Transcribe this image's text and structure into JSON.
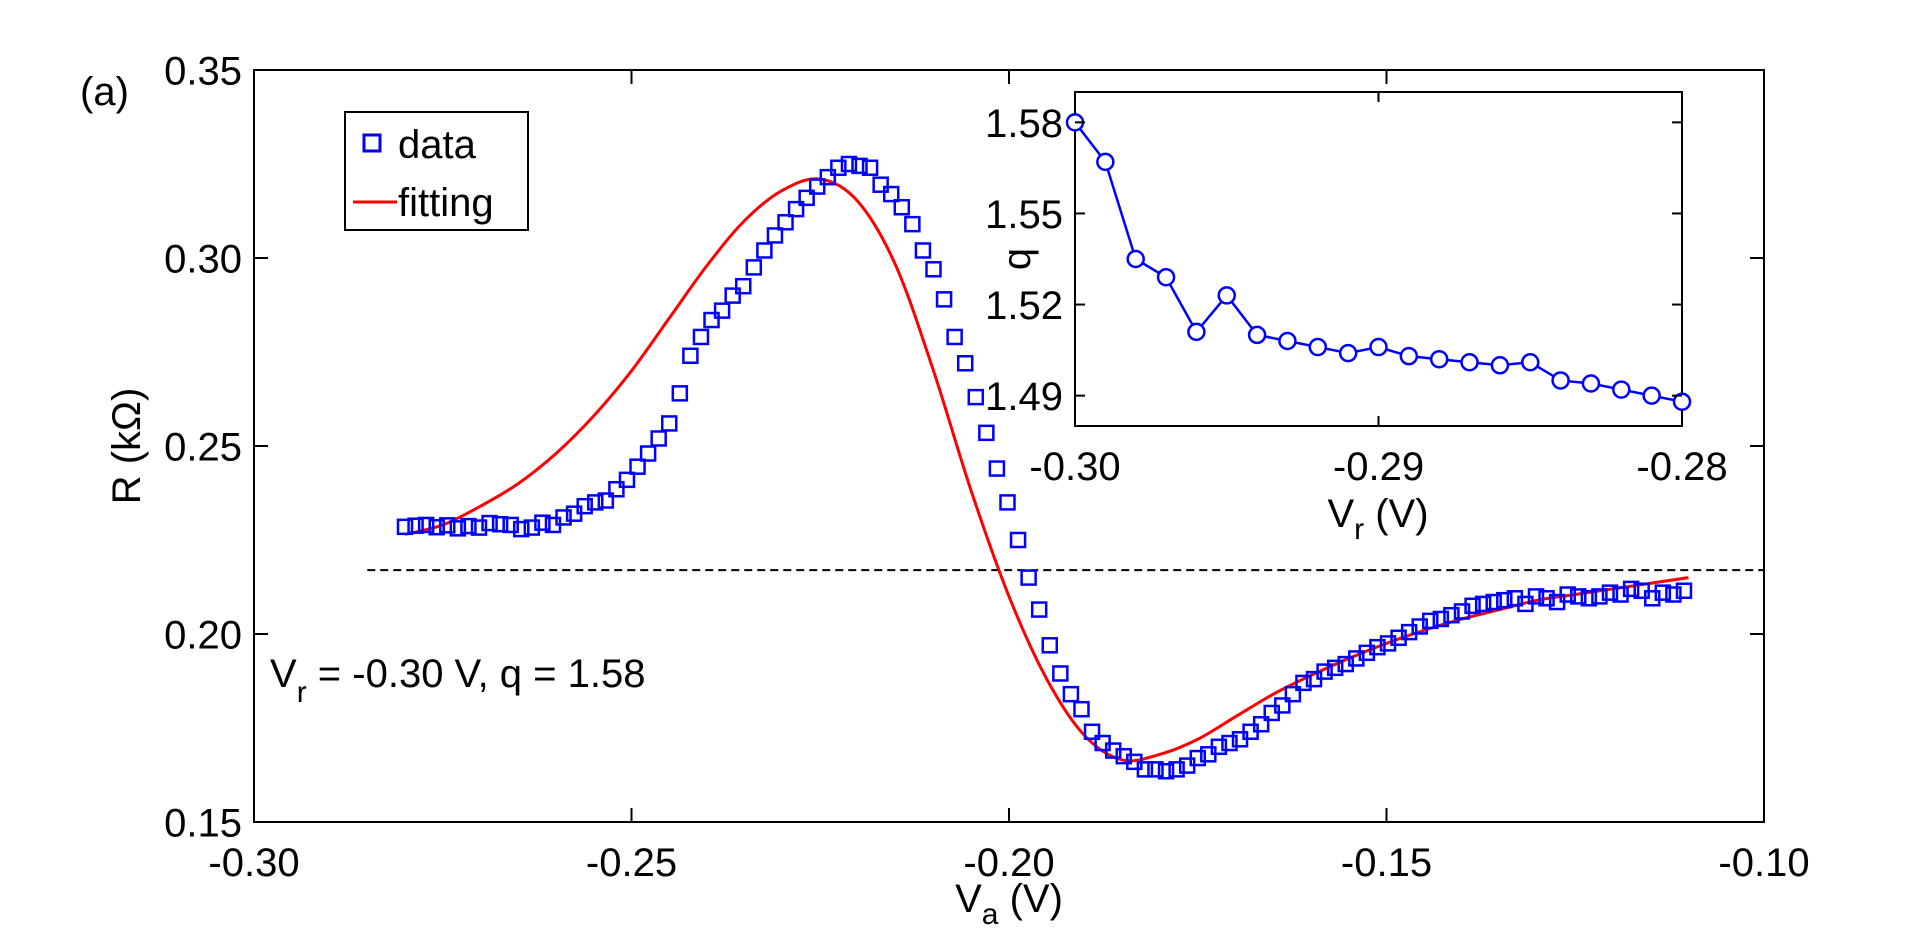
{
  "chart_data": [
    {
      "type": "scatter",
      "panel_label": "(a)",
      "xlabel": {
        "main": "V",
        "sub": "a",
        "unit": " (V)"
      },
      "ylabel": "R (kΩ)",
      "xlim": [
        -0.3,
        -0.1
      ],
      "ylim": [
        0.15,
        0.35
      ],
      "xticks": [
        -0.3,
        -0.25,
        -0.2,
        -0.15,
        -0.1
      ],
      "xtick_labels": [
        "-0.30",
        "-0.25",
        "-0.20",
        "-0.15",
        "-0.10"
      ],
      "yticks": [
        0.15,
        0.2,
        0.25,
        0.3,
        0.35
      ],
      "ytick_labels": [
        "0.15",
        "0.20",
        "0.25",
        "0.30",
        "0.35"
      ],
      "legend": {
        "position": "top-left",
        "entries": [
          "data",
          "fitting"
        ]
      },
      "annotation": {
        "v": "V",
        "sub": "r",
        "rest": " = -0.30 V, q = 1.58"
      },
      "reference_line": {
        "y": 0.217,
        "x_start": -0.285,
        "x_end": -0.1,
        "style": "dashed"
      },
      "series": [
        {
          "name": "data",
          "marker": "square",
          "color": "#0000ff",
          "x": [
            -0.28,
            -0.2786,
            -0.2772,
            -0.2758,
            -0.2744,
            -0.273,
            -0.2716,
            -0.2702,
            -0.2688,
            -0.2674,
            -0.266,
            -0.2646,
            -0.2632,
            -0.2618,
            -0.2604,
            -0.259,
            -0.2576,
            -0.2562,
            -0.2548,
            -0.2534,
            -0.252,
            -0.2506,
            -0.2492,
            -0.2478,
            -0.2464,
            -0.245,
            -0.2436,
            -0.2422,
            -0.2408,
            -0.2394,
            -0.238,
            -0.2366,
            -0.2352,
            -0.2338,
            -0.2324,
            -0.231,
            -0.2296,
            -0.2282,
            -0.2268,
            -0.2254,
            -0.224,
            -0.2226,
            -0.2212,
            -0.2198,
            -0.2184,
            -0.217,
            -0.2156,
            -0.2142,
            -0.2128,
            -0.2114,
            -0.21,
            -0.2086,
            -0.2072,
            -0.2058,
            -0.2044,
            -0.203,
            -0.2016,
            -0.2002,
            -0.1988,
            -0.1974,
            -0.196,
            -0.1946,
            -0.1932,
            -0.1918,
            -0.1904,
            -0.189,
            -0.1876,
            -0.1862,
            -0.1848,
            -0.1834,
            -0.182,
            -0.1806,
            -0.1792,
            -0.1778,
            -0.1764,
            -0.175,
            -0.1736,
            -0.1722,
            -0.1708,
            -0.1694,
            -0.168,
            -0.1666,
            -0.1652,
            -0.1638,
            -0.1624,
            -0.161,
            -0.1596,
            -0.1582,
            -0.1568,
            -0.1554,
            -0.154,
            -0.1526,
            -0.1512,
            -0.1498,
            -0.1484,
            -0.147,
            -0.1456,
            -0.1442,
            -0.1428,
            -0.1414,
            -0.14,
            -0.1386,
            -0.1372,
            -0.1358,
            -0.1344,
            -0.133,
            -0.1316,
            -0.1302,
            -0.1288,
            -0.1274,
            -0.126,
            -0.1246,
            -0.1232,
            -0.1218,
            -0.1204,
            -0.119,
            -0.1176,
            -0.1162,
            -0.1148,
            -0.1134,
            -0.112,
            -0.1106
          ],
          "y": [
            0.2285,
            0.2288,
            0.229,
            0.2284,
            0.2289,
            0.2281,
            0.2287,
            0.2283,
            0.2295,
            0.2292,
            0.229,
            0.2279,
            0.2283,
            0.2296,
            0.229,
            0.231,
            0.232,
            0.234,
            0.235,
            0.2355,
            0.2385,
            0.241,
            0.2445,
            0.248,
            0.252,
            0.256,
            0.264,
            0.274,
            0.279,
            0.2835,
            0.286,
            0.29,
            0.2925,
            0.2975,
            0.302,
            0.306,
            0.3095,
            0.313,
            0.316,
            0.319,
            0.3215,
            0.324,
            0.325,
            0.3245,
            0.324,
            0.3195,
            0.317,
            0.3135,
            0.309,
            0.302,
            0.297,
            0.289,
            0.279,
            0.272,
            0.263,
            0.2535,
            0.244,
            0.235,
            0.225,
            0.215,
            0.2065,
            0.197,
            0.1895,
            0.184,
            0.18,
            0.174,
            0.171,
            0.169,
            0.1675,
            0.166,
            0.164,
            0.164,
            0.1635,
            0.164,
            0.165,
            0.167,
            0.168,
            0.17,
            0.171,
            0.172,
            0.174,
            0.176,
            0.179,
            0.181,
            0.184,
            0.187,
            0.188,
            0.19,
            0.191,
            0.192,
            0.1935,
            0.195,
            0.1965,
            0.1975,
            0.199,
            0.2005,
            0.202,
            0.2035,
            0.204,
            0.205,
            0.206,
            0.2075,
            0.208,
            0.2085,
            0.209,
            0.2095,
            0.208,
            0.21,
            0.2095,
            0.2085,
            0.2105,
            0.21,
            0.2095,
            0.21,
            0.211,
            0.2105,
            0.212,
            0.2115,
            0.2095,
            0.211,
            0.2105,
            0.2115
          ]
        },
        {
          "name": "fitting",
          "marker": "line",
          "color": "#ff0000",
          "x": [
            -0.28,
            -0.275,
            -0.27,
            -0.265,
            -0.26,
            -0.255,
            -0.25,
            -0.245,
            -0.24,
            -0.235,
            -0.23,
            -0.225,
            -0.22,
            -0.215,
            -0.21,
            -0.205,
            -0.2,
            -0.195,
            -0.19,
            -0.185,
            -0.18,
            -0.175,
            -0.17,
            -0.165,
            -0.16,
            -0.155,
            -0.15,
            -0.145,
            -0.14,
            -0.135,
            -0.13,
            -0.125,
            -0.12,
            -0.115,
            -0.11
          ],
          "y": [
            0.2265,
            0.229,
            0.234,
            0.24,
            0.248,
            0.258,
            0.27,
            0.284,
            0.298,
            0.31,
            0.318,
            0.321,
            0.315,
            0.298,
            0.27,
            0.238,
            0.21,
            0.188,
            0.173,
            0.1665,
            0.168,
            0.172,
            0.178,
            0.184,
            0.189,
            0.1935,
            0.1975,
            0.201,
            0.204,
            0.2065,
            0.209,
            0.2105,
            0.212,
            0.2135,
            0.215
          ]
        }
      ]
    },
    {
      "type": "line",
      "xlabel": {
        "main": "V",
        "sub": "r",
        "unit": " (V)"
      },
      "ylabel": "q",
      "xlim": [
        -0.3,
        -0.28
      ],
      "ylim": [
        1.48,
        1.59
      ],
      "xticks": [
        -0.3,
        -0.29,
        -0.28
      ],
      "xtick_labels": [
        "-0.30",
        "-0.29",
        "-0.28"
      ],
      "yticks": [
        1.49,
        1.52,
        1.55,
        1.58
      ],
      "ytick_labels": [
        "1.49",
        "1.52",
        "1.55",
        "1.58"
      ],
      "series": [
        {
          "name": "q",
          "marker": "circle",
          "color": "#0000ff",
          "x": [
            -0.3,
            -0.299,
            -0.298,
            -0.297,
            -0.296,
            -0.295,
            -0.294,
            -0.293,
            -0.292,
            -0.291,
            -0.29,
            -0.289,
            -0.288,
            -0.287,
            -0.286,
            -0.285,
            -0.284,
            -0.283,
            -0.282,
            -0.281,
            -0.28
          ],
          "y": [
            1.58,
            1.567,
            1.535,
            1.529,
            1.511,
            1.523,
            1.51,
            1.508,
            1.506,
            1.504,
            1.506,
            1.503,
            1.502,
            1.501,
            1.5,
            1.501,
            1.495,
            1.494,
            1.492,
            1.49,
            1.488
          ]
        }
      ]
    }
  ]
}
